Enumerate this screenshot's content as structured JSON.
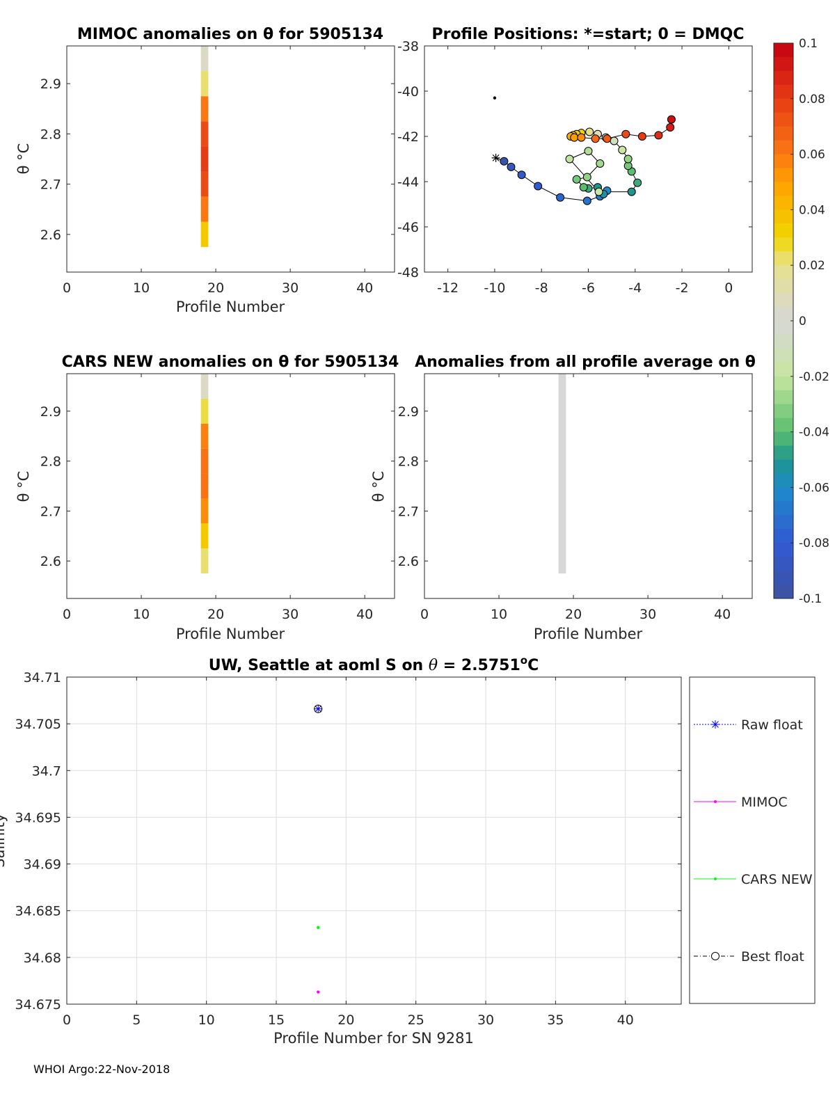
{
  "chart_data": [
    {
      "id": "mimoc",
      "type": "heatmap",
      "title": "MIMOC anomalies on θ  for 5905134",
      "xlabel": "Profile Number",
      "ylabel": "θ °C",
      "xlim": [
        0,
        44
      ],
      "ylim": [
        2.525,
        2.975
      ],
      "xticks": [
        0,
        10,
        20,
        30,
        40
      ],
      "yticks": [
        2.6,
        2.7,
        2.8,
        2.9
      ],
      "xtick_labels": [
        "0",
        "10",
        "20",
        "30",
        "40"
      ],
      "ytick_labels": [
        "2.6",
        "2.7",
        "2.8",
        "2.9"
      ],
      "bars": [
        {
          "profile": 18.5,
          "width": 1,
          "theta_lo": 2.575,
          "theta_hi": 2.625,
          "anomaly": 0.035
        },
        {
          "profile": 18.5,
          "width": 1,
          "theta_lo": 2.625,
          "theta_hi": 2.675,
          "anomaly": 0.06
        },
        {
          "profile": 18.5,
          "width": 1,
          "theta_lo": 2.675,
          "theta_hi": 2.725,
          "anomaly": 0.075
        },
        {
          "profile": 18.5,
          "width": 1,
          "theta_lo": 2.725,
          "theta_hi": 2.775,
          "anomaly": 0.08
        },
        {
          "profile": 18.5,
          "width": 1,
          "theta_lo": 2.775,
          "theta_hi": 2.825,
          "anomaly": 0.075
        },
        {
          "profile": 18.5,
          "width": 1,
          "theta_lo": 2.825,
          "theta_hi": 2.875,
          "anomaly": 0.06
        },
        {
          "profile": 18.5,
          "width": 1,
          "theta_lo": 2.875,
          "theta_hi": 2.925,
          "anomaly": 0.022
        },
        {
          "profile": 18.5,
          "width": 1,
          "theta_lo": 2.925,
          "theta_hi": 2.975,
          "anomaly": 0.005
        }
      ]
    },
    {
      "id": "positions",
      "type": "scatter",
      "title": "Profile Positions: *=start; 0 = DMQC",
      "xlim": [
        -13,
        1
      ],
      "ylim": [
        -48,
        -38
      ],
      "xticks": [
        -12,
        -10,
        -8,
        -6,
        -4,
        -2,
        0
      ],
      "yticks": [
        -48,
        -46,
        -44,
        -42,
        -40,
        -38
      ],
      "xtick_labels": [
        "-12",
        "-10",
        "-8",
        "-6",
        "-4",
        "-2",
        "0"
      ],
      "ytick_labels": [
        "-48",
        "-46",
        "-44",
        "-42",
        "-40",
        "-38"
      ],
      "black_dot": {
        "lon": -10.0,
        "lat": -40.3
      },
      "start_marker": {
        "lon": -9.95,
        "lat": -42.95
      },
      "track": [
        [
          -9.95,
          -42.95,
          -0.1
        ],
        [
          -9.6,
          -43.1,
          -0.095
        ],
        [
          -9.3,
          -43.35,
          -0.09
        ],
        [
          -8.85,
          -43.7,
          -0.085
        ],
        [
          -8.15,
          -44.2,
          -0.08
        ],
        [
          -7.2,
          -44.7,
          -0.075
        ],
        [
          -6.05,
          -44.85,
          -0.07
        ],
        [
          -5.5,
          -44.65,
          -0.065
        ],
        [
          -5.2,
          -44.4,
          -0.06
        ],
        [
          -5.35,
          -44.55,
          -0.055
        ],
        [
          -5.6,
          -44.25,
          -0.05
        ],
        [
          -6.0,
          -44.3,
          -0.045
        ],
        [
          -6.2,
          -44.25,
          -0.04
        ],
        [
          -6.5,
          -43.9,
          -0.035
        ],
        [
          -6.05,
          -43.8,
          -0.03
        ],
        [
          -5.5,
          -43.2,
          -0.027
        ],
        [
          -6.0,
          -42.65,
          -0.024
        ],
        [
          -6.8,
          -43.0,
          -0.021
        ],
        [
          -5.55,
          -44.45,
          -0.018
        ],
        [
          -4.15,
          -44.45,
          -0.05
        ],
        [
          -3.9,
          -44.05,
          -0.045
        ],
        [
          -4.15,
          -43.55,
          -0.04
        ],
        [
          -4.3,
          -43.3,
          -0.035
        ],
        [
          -4.3,
          -43.0,
          -0.03
        ],
        [
          -4.55,
          -42.6,
          -0.02
        ],
        [
          -4.9,
          -42.2,
          -0.01
        ],
        [
          -5.25,
          -42.05,
          0.0
        ],
        [
          -5.6,
          -41.9,
          0.01
        ],
        [
          -5.95,
          -41.8,
          0.02
        ],
        [
          -6.3,
          -41.85,
          0.03
        ],
        [
          -6.5,
          -41.9,
          0.035
        ],
        [
          -6.65,
          -41.95,
          0.04
        ],
        [
          -6.75,
          -42.0,
          0.045
        ],
        [
          -6.6,
          -42.05,
          0.05
        ],
        [
          -6.3,
          -42.05,
          0.055
        ],
        [
          -5.7,
          -42.1,
          0.065
        ],
        [
          -5.2,
          -42.1,
          0.07
        ],
        [
          -4.4,
          -41.9,
          0.075
        ],
        [
          -3.7,
          -42.0,
          0.08
        ],
        [
          -3.0,
          -41.95,
          0.085
        ],
        [
          -2.5,
          -41.6,
          0.09
        ],
        [
          -2.45,
          -41.25,
          0.095
        ]
      ]
    },
    {
      "id": "cars",
      "type": "heatmap",
      "title": "CARS NEW anomalies on θ for 5905134",
      "xlabel": "Profile Number",
      "ylabel": "θ °C",
      "xlim": [
        0,
        44
      ],
      "ylim": [
        2.525,
        2.975
      ],
      "xticks": [
        0,
        10,
        20,
        30,
        40
      ],
      "yticks": [
        2.6,
        2.7,
        2.8,
        2.9
      ],
      "xtick_labels": [
        "0",
        "10",
        "20",
        "30",
        "40"
      ],
      "ytick_labels": [
        "2.6",
        "2.7",
        "2.8",
        "2.9"
      ],
      "bars": [
        {
          "profile": 18.5,
          "width": 1,
          "theta_lo": 2.575,
          "theta_hi": 2.625,
          "anomaly": 0.022
        },
        {
          "profile": 18.5,
          "width": 1,
          "theta_lo": 2.625,
          "theta_hi": 2.675,
          "anomaly": 0.035
        },
        {
          "profile": 18.5,
          "width": 1,
          "theta_lo": 2.675,
          "theta_hi": 2.725,
          "anomaly": 0.055
        },
        {
          "profile": 18.5,
          "width": 1,
          "theta_lo": 2.725,
          "theta_hi": 2.775,
          "anomaly": 0.062
        },
        {
          "profile": 18.5,
          "width": 1,
          "theta_lo": 2.775,
          "theta_hi": 2.825,
          "anomaly": 0.062
        },
        {
          "profile": 18.5,
          "width": 1,
          "theta_lo": 2.825,
          "theta_hi": 2.875,
          "anomaly": 0.058
        },
        {
          "profile": 18.5,
          "width": 1,
          "theta_lo": 2.875,
          "theta_hi": 2.925,
          "anomaly": 0.025
        },
        {
          "profile": 18.5,
          "width": 1,
          "theta_lo": 2.925,
          "theta_hi": 2.975,
          "anomaly": 0.005
        }
      ]
    },
    {
      "id": "average",
      "type": "heatmap",
      "title": "Anomalies from all profile average on θ",
      "xlabel": "Profile Number",
      "ylabel": "θ °C",
      "xlim": [
        0,
        44
      ],
      "ylim": [
        2.525,
        2.975
      ],
      "xticks": [
        0,
        10,
        20,
        30,
        40
      ],
      "yticks": [
        2.6,
        2.7,
        2.8,
        2.9
      ],
      "xtick_labels": [
        "0",
        "10",
        "20",
        "30",
        "40"
      ],
      "ytick_labels": [
        "2.6",
        "2.7",
        "2.8",
        "2.9"
      ],
      "bars": [
        {
          "profile": 18.5,
          "width": 1,
          "theta_lo": 2.575,
          "theta_hi": 2.975,
          "anomaly": 0.0
        }
      ]
    },
    {
      "id": "colorbar",
      "type": "colorbar",
      "range": [
        -0.1,
        0.1
      ],
      "ticks": [
        0.1,
        0.08,
        0.06,
        0.04,
        0.02,
        0,
        -0.02,
        -0.04,
        -0.06,
        -0.08,
        -0.1
      ],
      "tick_labels": [
        "0.1",
        "0.08",
        "0.06",
        "0.04",
        "0.02",
        "0",
        "-0.02",
        "-0.04",
        "-0.06",
        "-0.08",
        "-0.1"
      ]
    },
    {
      "id": "salinity",
      "type": "scatter",
      "title": "UW, Seattle at aoml S on θ = 2.5751°C",
      "title_main": "UW, Seattle at aoml S on ",
      "title_theta": "θ",
      "title_value": " = 2.5751",
      "title_deg": "o",
      "title_unit": "C",
      "xlabel": "Profile Number for SN 9281",
      "ylabel": "Salinity",
      "xlim": [
        0,
        44
      ],
      "ylim": [
        34.675,
        34.71
      ],
      "xticks": [
        0,
        5,
        10,
        15,
        20,
        25,
        30,
        35,
        40
      ],
      "yticks": [
        34.675,
        34.68,
        34.685,
        34.69,
        34.695,
        34.7,
        34.705,
        34.71
      ],
      "xtick_labels": [
        "0",
        "5",
        "10",
        "15",
        "20",
        "25",
        "30",
        "35",
        "40"
      ],
      "ytick_labels": [
        "34.675",
        "34.68",
        "34.685",
        "34.69",
        "34.695",
        "34.7",
        "34.705",
        "34.71"
      ],
      "grid": true,
      "series": [
        {
          "name": "Raw float",
          "color": "#0000ff",
          "marker": "star",
          "points": [
            [
              18,
              34.7066
            ]
          ]
        },
        {
          "name": "MIMOC",
          "color": "#ff00ff",
          "marker": "dot",
          "points": [
            [
              18,
              34.6763
            ]
          ]
        },
        {
          "name": "CARS NEW",
          "color": "#00ff00",
          "marker": "dot",
          "points": [
            [
              18,
              34.6832
            ]
          ]
        },
        {
          "name": "Best float",
          "color": "#000000",
          "marker": "circle",
          "points": [
            [
              18,
              34.7066
            ]
          ]
        }
      ],
      "legend": [
        "Raw float",
        "MIMOC",
        "CARS NEW",
        "Best float"
      ]
    }
  ],
  "footer": "WHOI Argo:22-Nov-2018"
}
